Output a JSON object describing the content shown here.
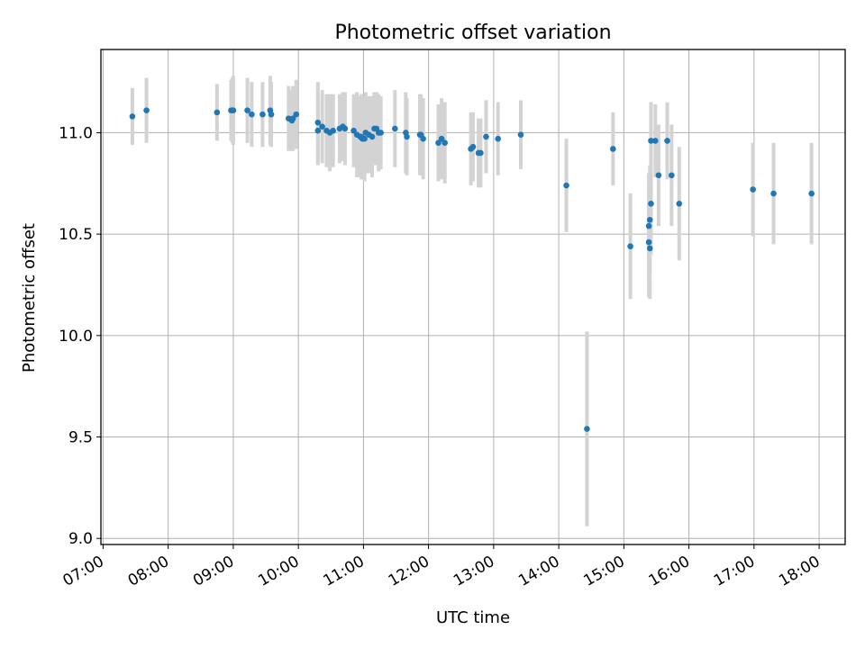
{
  "chart_data": {
    "type": "scatter",
    "title": "Photometric offset variation",
    "xlabel": "UTC time",
    "ylabel": "Photometric offset",
    "x_ticks": [
      "07:00",
      "08:00",
      "09:00",
      "10:00",
      "11:00",
      "12:00",
      "13:00",
      "14:00",
      "15:00",
      "16:00",
      "17:00",
      "18:00"
    ],
    "y_ticks": [
      "9.0",
      "9.5",
      "10.0",
      "10.5",
      "11.0"
    ],
    "xlim": [
      "06:58",
      "18:24"
    ],
    "ylim": [
      8.97,
      11.41
    ],
    "grid": true,
    "point_color": "#1f77b4",
    "errorbar_color": "#d3d3d3",
    "series": [
      {
        "x": [
          "07:27",
          "07:40",
          "08:45",
          "08:58",
          "08:59",
          "09:00",
          "09:13",
          "09:17",
          "09:27",
          "09:34",
          "09:35",
          "09:51",
          "09:54",
          "09:55",
          "09:58",
          "10:18",
          "10:18",
          "10:22",
          "10:26",
          "10:29",
          "10:32",
          "10:38",
          "10:41",
          "10:43",
          "10:51",
          "10:54",
          "10:57",
          "10:58",
          "10:59",
          "11:01",
          "11:02",
          "11:05",
          "11:08",
          "11:10",
          "11:12",
          "11:14",
          "11:16",
          "11:29",
          "11:39",
          "11:40",
          "11:52",
          "11:53",
          "11:55",
          "12:09",
          "12:12",
          "12:15",
          "12:39",
          "12:41",
          "12:46",
          "12:48",
          "12:53",
          "13:04",
          "13:25",
          "14:07",
          "14:26",
          "14:50",
          "15:06",
          "15:23",
          "15:23",
          "15:24",
          "15:24",
          "15:25",
          "15:25",
          "15:29",
          "15:32",
          "15:40",
          "15:44",
          "15:51",
          "16:59",
          "17:18",
          "17:53"
        ],
        "y": [
          11.08,
          11.11,
          11.1,
          11.11,
          11.11,
          11.11,
          11.11,
          11.09,
          11.09,
          11.11,
          11.09,
          11.07,
          11.06,
          11.07,
          11.09,
          11.05,
          11.01,
          11.03,
          11.01,
          11.0,
          11.01,
          11.02,
          11.03,
          11.02,
          11.01,
          10.99,
          10.98,
          10.98,
          10.97,
          10.97,
          11.0,
          10.99,
          10.98,
          11.02,
          11.02,
          11.0,
          11.0,
          11.02,
          11.0,
          10.98,
          10.99,
          10.99,
          10.97,
          10.95,
          10.97,
          10.95,
          10.92,
          10.93,
          10.9,
          10.9,
          10.98,
          10.97,
          10.99,
          10.74,
          9.54,
          10.92,
          10.44,
          10.46,
          10.54,
          10.57,
          10.43,
          10.65,
          10.96,
          10.96,
          10.79,
          10.96,
          10.79,
          10.65,
          10.72,
          10.7,
          10.7
        ],
        "yerr": [
          0.14,
          0.16,
          0.14,
          0.15,
          0.16,
          0.17,
          0.16,
          0.16,
          0.16,
          0.17,
          0.16,
          0.16,
          0.15,
          0.16,
          0.17,
          0.2,
          0.17,
          0.18,
          0.18,
          0.19,
          0.18,
          0.17,
          0.17,
          0.18,
          0.18,
          0.21,
          0.2,
          0.21,
          0.2,
          0.21,
          0.2,
          0.19,
          0.2,
          0.18,
          0.18,
          0.19,
          0.18,
          0.19,
          0.2,
          0.19,
          0.2,
          0.2,
          0.2,
          0.19,
          0.2,
          0.2,
          0.18,
          0.17,
          0.17,
          0.17,
          0.18,
          0.18,
          0.17,
          0.23,
          0.48,
          0.18,
          0.26,
          0.27,
          0.26,
          0.27,
          0.25,
          0.25,
          0.19,
          0.18,
          0.25,
          0.19,
          0.25,
          0.28,
          0.23,
          0.25,
          0.25
        ]
      }
    ]
  }
}
